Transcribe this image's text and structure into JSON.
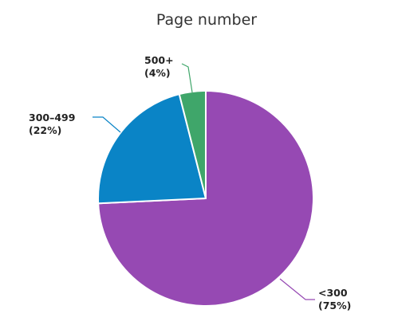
{
  "chart_data": {
    "type": "pie",
    "title": "Page number",
    "slices": [
      {
        "label": "<300",
        "value": 75,
        "percent_label": "(75%)",
        "color": "#9649b3"
      },
      {
        "label": "300–499",
        "value": 22,
        "percent_label": "(22%)",
        "color": "#0a84c6"
      },
      {
        "label": "500+",
        "value": 4,
        "percent_label": "(4%)",
        "color": "#3fa66a"
      }
    ]
  }
}
